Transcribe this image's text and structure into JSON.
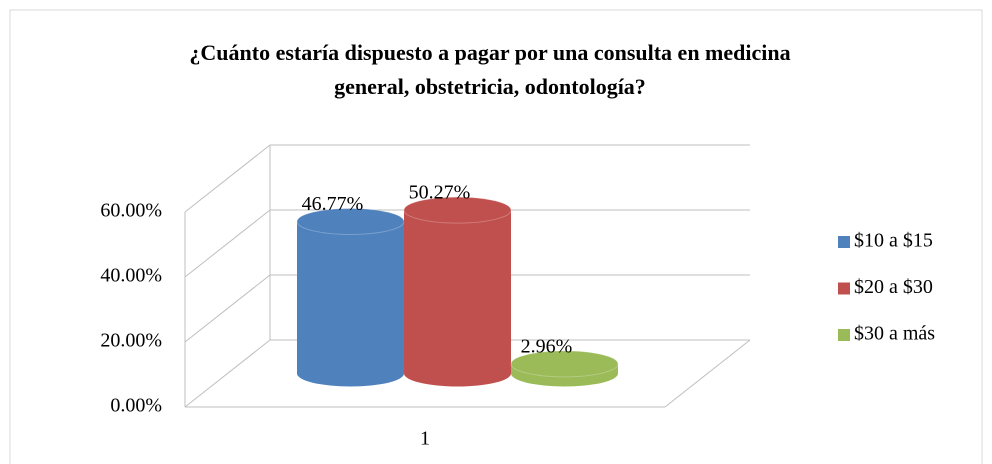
{
  "chart_data": {
    "type": "bar",
    "title": "¿Cuánto estaría dispuesto a pagar por una consulta en medicina general, obstetricia, odontología?",
    "categories": [
      "1"
    ],
    "series": [
      {
        "name": "$10 a $15",
        "color": "#4f81bd",
        "values": [
          46.77
        ],
        "value_labels": [
          "46.77%"
        ]
      },
      {
        "name": "$20 a $30",
        "color": "#c0504d",
        "values": [
          50.27
        ],
        "value_labels": [
          "50.27%"
        ]
      },
      {
        "name": "$30 a más",
        "color": "#9bbb59",
        "values": [
          2.96
        ],
        "value_labels": [
          "2.96%"
        ]
      }
    ],
    "ylim": [
      0,
      60
    ],
    "yticks": [
      {
        "value": 0,
        "label": "0.00%"
      },
      {
        "value": 20,
        "label": "20.00%"
      },
      {
        "value": 40,
        "label": "40.00%"
      },
      {
        "value": 60,
        "label": "60.00%"
      }
    ],
    "grid": true,
    "legend": "right"
  }
}
